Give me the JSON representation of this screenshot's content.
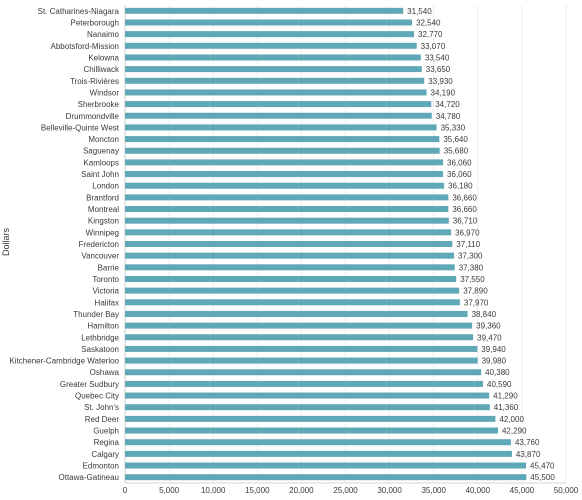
{
  "chart_data": {
    "type": "bar",
    "orientation": "horizontal",
    "title": "",
    "xlabel": "",
    "ylabel": "Dollars",
    "xlim": [
      0,
      50000
    ],
    "x_ticks": [
      0,
      5000,
      10000,
      15000,
      20000,
      25000,
      30000,
      35000,
      40000,
      45000,
      50000
    ],
    "x_tick_labels": [
      "0",
      "5,000",
      "10,000",
      "15,000",
      "20,000",
      "25,000",
      "30,000",
      "35,000",
      "40,000",
      "45,000",
      "50,000"
    ],
    "grid": true,
    "bar_color": "#5fa8b8",
    "categories": [
      "St. Catharines-Niagara",
      "Peterborough",
      "Nanaimo",
      "Abbotsford-Mission",
      "Kelowna",
      "Chilliwack",
      "Trois-Rivières",
      "Windsor",
      "Sherbrooke",
      "Drummondville",
      "Belleville-Quinte West",
      "Moncton",
      "Saguenay",
      "Kamloops",
      "Saint John",
      "London",
      "Brantford",
      "Montreal",
      "Kingston",
      "Winnipeg",
      "Fredericton",
      "Vancouver",
      "Barrie",
      "Toronto",
      "Victoria",
      "Halifax",
      "Thunder Bay",
      "Hamilton",
      "Lethbridge",
      "Saskatoon",
      "Kitchener-Cambridge Waterloo",
      "Oshawa",
      "Greater Sudbury",
      "Quebec City",
      "St. John's",
      "Red Deer",
      "Guelph",
      "Regina",
      "Calgary",
      "Edmonton",
      "Ottawa-Gatineau"
    ],
    "values": [
      31540,
      32540,
      32770,
      33070,
      33540,
      33650,
      33930,
      34190,
      34720,
      34780,
      35330,
      35640,
      35680,
      36060,
      36060,
      36180,
      36660,
      36660,
      36710,
      36970,
      37110,
      37300,
      37380,
      37550,
      37890,
      37970,
      38840,
      39360,
      39470,
      39940,
      39980,
      40380,
      40590,
      41290,
      41360,
      42000,
      42290,
      43760,
      43870,
      45470,
      45500
    ],
    "value_labels": [
      "31,540",
      "32,540",
      "32,770",
      "33,070",
      "33,540",
      "33,650",
      "33,930",
      "34,190",
      "34,720",
      "34,780",
      "35,330",
      "35,640",
      "35,680",
      "36,060",
      "36,060",
      "36,180",
      "36,660",
      "36,660",
      "36,710",
      "36,970",
      "37,110",
      "37,300",
      "37,380",
      "37,550",
      "37,890",
      "37,970",
      "38,840",
      "39,360",
      "39,470",
      "39,940",
      "39,980",
      "40,380",
      "40,590",
      "41,290",
      "41,360",
      "42,000",
      "42,290",
      "43,760",
      "43,870",
      "45,470",
      "45,500"
    ]
  }
}
